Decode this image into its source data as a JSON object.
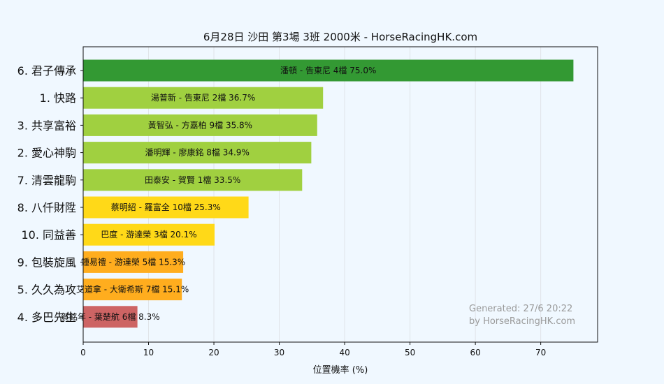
{
  "chart_data": {
    "type": "bar",
    "orientation": "horizontal",
    "title": "6月28日  沙田  第3場  3班  2000米 - HorseRacingHK.com",
    "xlabel": "位置機率 (%)",
    "xlim": [
      0,
      78.7
    ],
    "xticks": [
      0,
      10,
      20,
      30,
      40,
      50,
      60,
      70
    ],
    "grid": "vertical",
    "categories": [
      "6. 君子傳承",
      "1. 快路",
      "3. 共享富裕",
      "2. 愛心神駒",
      "7. 清雲龍駒",
      "8. 八仟財陞",
      "10. 同益善",
      "9. 包裝旋風",
      "5. 久久為攻",
      "4. 多巴先生"
    ],
    "values": [
      75.0,
      36.7,
      35.8,
      34.9,
      33.5,
      25.3,
      20.1,
      15.3,
      15.1,
      8.3
    ],
    "bar_labels": [
      "潘頓 - 告東尼 4檔  75.0%",
      "湯普新 - 告東尼 2檔  36.7%",
      "黃智弘 - 方嘉柏 9檔  35.8%",
      "潘明輝 - 廖康銘 8檔  34.9%",
      "田泰安 - 賀賢 1檔  33.5%",
      "蔡明紹 - 羅富全 10檔  25.3%",
      "巴度 - 游達榮 3檔  20.1%",
      "鍾易禮 - 游達榮 5檔  15.3%",
      "艾道拿 - 大衛希斯 7檔  15.1%",
      "賀銘年 - 葉楚航 6檔  8.3%"
    ],
    "colors": [
      "#339933",
      "#a0d040",
      "#a0d040",
      "#a0d040",
      "#a0d040",
      "#ffd918",
      "#ffd918",
      "#ffad1e",
      "#ffad1e",
      "#cd6464"
    ]
  },
  "watermark": {
    "line1": "Generated: 27/6 20:22",
    "line2": "by HorseRacingHK.com"
  }
}
